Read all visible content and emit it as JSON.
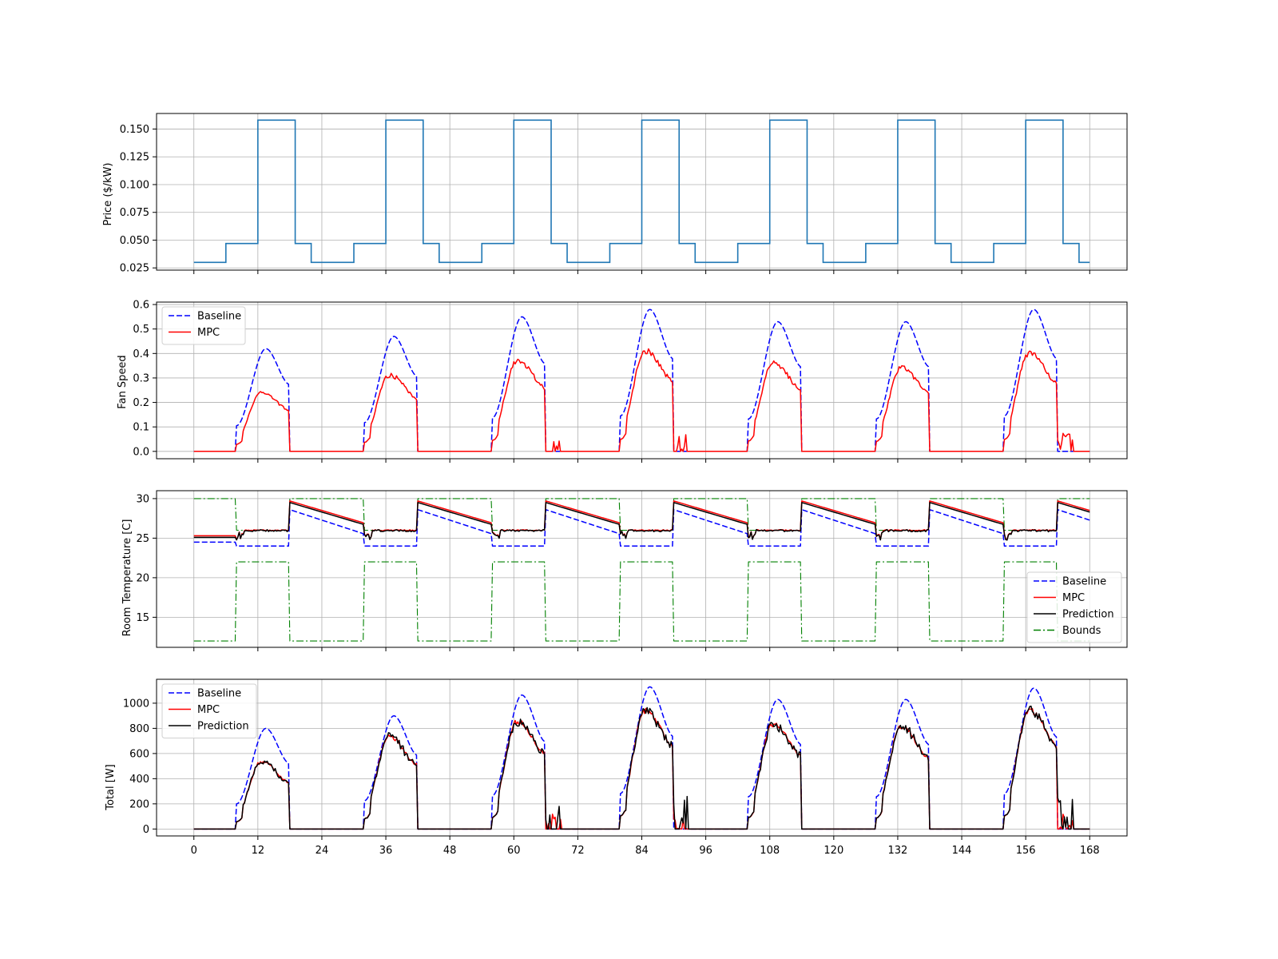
{
  "chart_data": [
    {
      "type": "line",
      "id": "price",
      "ylabel": "Price ($/kW)",
      "ylim": [
        0.023,
        0.164
      ],
      "yticks": [
        0.025,
        0.05,
        0.075,
        0.1,
        0.125,
        0.15
      ],
      "ytick_labels": [
        "0.025",
        "0.050",
        "0.075",
        "0.100",
        "0.125",
        "0.150"
      ],
      "grid": true,
      "legend": null,
      "series": [
        {
          "key": "price",
          "color": "#1f77b4",
          "style": "solid",
          "step": true
        }
      ],
      "daily_schedule": [
        {
          "from": 0,
          "to": 6,
          "value": 0.03
        },
        {
          "from": 6,
          "to": 12,
          "value": 0.047
        },
        {
          "from": 12,
          "to": 19,
          "value": 0.158
        },
        {
          "from": 19,
          "to": 22,
          "value": 0.047
        },
        {
          "from": 22,
          "to": 24,
          "value": 0.03
        }
      ]
    },
    {
      "type": "line",
      "id": "fan",
      "ylabel": "Fan Speed",
      "ylim": [
        -0.03,
        0.61
      ],
      "yticks": [
        0,
        0.1,
        0.2,
        0.3,
        0.4,
        0.5,
        0.6
      ],
      "ytick_labels": [
        "0.0",
        "0.1",
        "0.2",
        "0.3",
        "0.4",
        "0.5",
        "0.6"
      ],
      "grid": true,
      "legend": "upper left",
      "series": [
        {
          "key": "baseline",
          "name": "Baseline",
          "color": "#0000ff",
          "style": "dashed"
        },
        {
          "key": "mpc",
          "name": "MPC",
          "color": "#ff0000",
          "style": "solid"
        }
      ],
      "daily_peaks": {
        "baseline": [
          0.42,
          0.47,
          0.55,
          0.58,
          0.53,
          0.53,
          0.58
        ],
        "mpc": [
          0.24,
          0.31,
          0.37,
          0.41,
          0.36,
          0.34,
          0.4
        ]
      }
    },
    {
      "type": "line",
      "id": "temp",
      "ylabel": "Room Temperature [C]",
      "ylim": [
        11.2,
        31
      ],
      "yticks": [
        15,
        20,
        25,
        30
      ],
      "ytick_labels": [
        "15",
        "20",
        "25",
        "30"
      ],
      "grid": true,
      "legend": "lower right",
      "series": [
        {
          "key": "baseline",
          "name": "Baseline",
          "color": "#0000ff",
          "style": "dashed"
        },
        {
          "key": "mpc",
          "name": "MPC",
          "color": "#ff0000",
          "style": "solid"
        },
        {
          "key": "prediction",
          "name": "Prediction",
          "color": "#000000",
          "style": "solid"
        },
        {
          "key": "bounds",
          "name": "Bounds",
          "color": "#008000",
          "style": "dashdot"
        }
      ],
      "comfort_bounds": {
        "occupied": {
          "lower": 22,
          "upper": 26
        },
        "unoccupied": {
          "lower": 12,
          "upper": 30
        }
      }
    },
    {
      "type": "line",
      "id": "total",
      "ylabel": "Total [W]",
      "ylim": [
        -55,
        1190
      ],
      "yticks": [
        0,
        200,
        400,
        600,
        800,
        1000
      ],
      "ytick_labels": [
        "0",
        "200",
        "400",
        "600",
        "800",
        "1000"
      ],
      "xlim": [
        -7,
        175
      ],
      "xticks": [
        0,
        12,
        24,
        36,
        48,
        60,
        72,
        84,
        96,
        108,
        120,
        132,
        144,
        156,
        168
      ],
      "xtick_labels": [
        "0",
        "12",
        "24",
        "36",
        "48",
        "60",
        "72",
        "84",
        "96",
        "108",
        "120",
        "132",
        "144",
        "156",
        "168"
      ],
      "grid": true,
      "legend": "upper left",
      "series": [
        {
          "key": "baseline",
          "name": "Baseline",
          "color": "#0000ff",
          "style": "dashed"
        },
        {
          "key": "mpc",
          "name": "MPC",
          "color": "#ff0000",
          "style": "solid"
        },
        {
          "key": "prediction",
          "name": "Prediction",
          "color": "#000000",
          "style": "solid"
        }
      ],
      "daily_peaks": {
        "baseline": [
          800,
          900,
          1065,
          1130,
          1030,
          1030,
          1120
        ],
        "mpc": [
          530,
          730,
          850,
          940,
          830,
          810,
          940
        ]
      }
    }
  ],
  "time_axis": {
    "hours": 168,
    "occupied_windows": [
      [
        8,
        18
      ],
      [
        32,
        42
      ],
      [
        56,
        66
      ],
      [
        80,
        90
      ],
      [
        104,
        114
      ],
      [
        128,
        138
      ],
      [
        152,
        162
      ]
    ]
  }
}
